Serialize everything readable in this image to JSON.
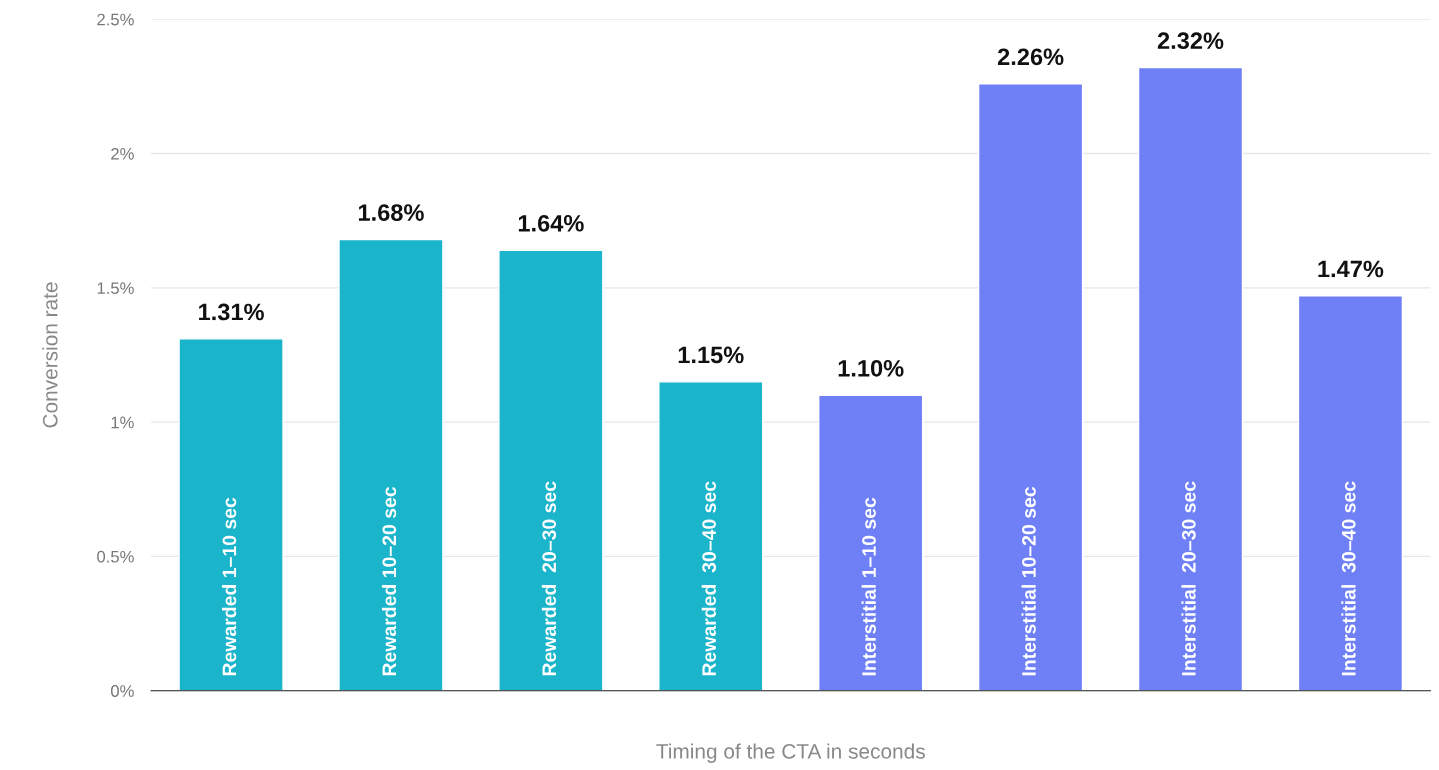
{
  "chart_data": {
    "type": "bar",
    "xlabel": "Timing of the CTA in seconds",
    "ylabel": "Conversion rate",
    "categories": [
      "Rewarded 1–10 sec",
      "Rewarded 10–20 sec",
      "Rewarded  20–30 sec",
      "Rewarded  30–40 sec",
      "Interstitial 1–10 sec",
      "Interstitial 10–20 sec",
      "Interstitial  20–30 sec",
      "Interstitial  30–40 sec"
    ],
    "values": [
      1.31,
      1.68,
      1.64,
      1.15,
      1.1,
      2.26,
      2.32,
      1.47
    ],
    "colors": [
      "#1ab4cb",
      "#1ab4cb",
      "#1ab4cb",
      "#1ab4cb",
      "#6f80f6",
      "#6f80f6",
      "#6f80f6",
      "#6f80f6"
    ],
    "value_labels": [
      "1.31%",
      "1.68%",
      "1.64%",
      "1.15%",
      "1.10%",
      "2.26%",
      "2.32%",
      "1.47%"
    ],
    "ylim": [
      0,
      2.5
    ],
    "yticks": [
      {
        "value": 0,
        "label": "0%"
      },
      {
        "value": 0.5,
        "label": "0.5%"
      },
      {
        "value": 1,
        "label": "1%"
      },
      {
        "value": 1.5,
        "label": "1.5%"
      },
      {
        "value": 2,
        "label": "2%"
      },
      {
        "value": 2.5,
        "label": "2.5%"
      }
    ],
    "grid": "y"
  }
}
